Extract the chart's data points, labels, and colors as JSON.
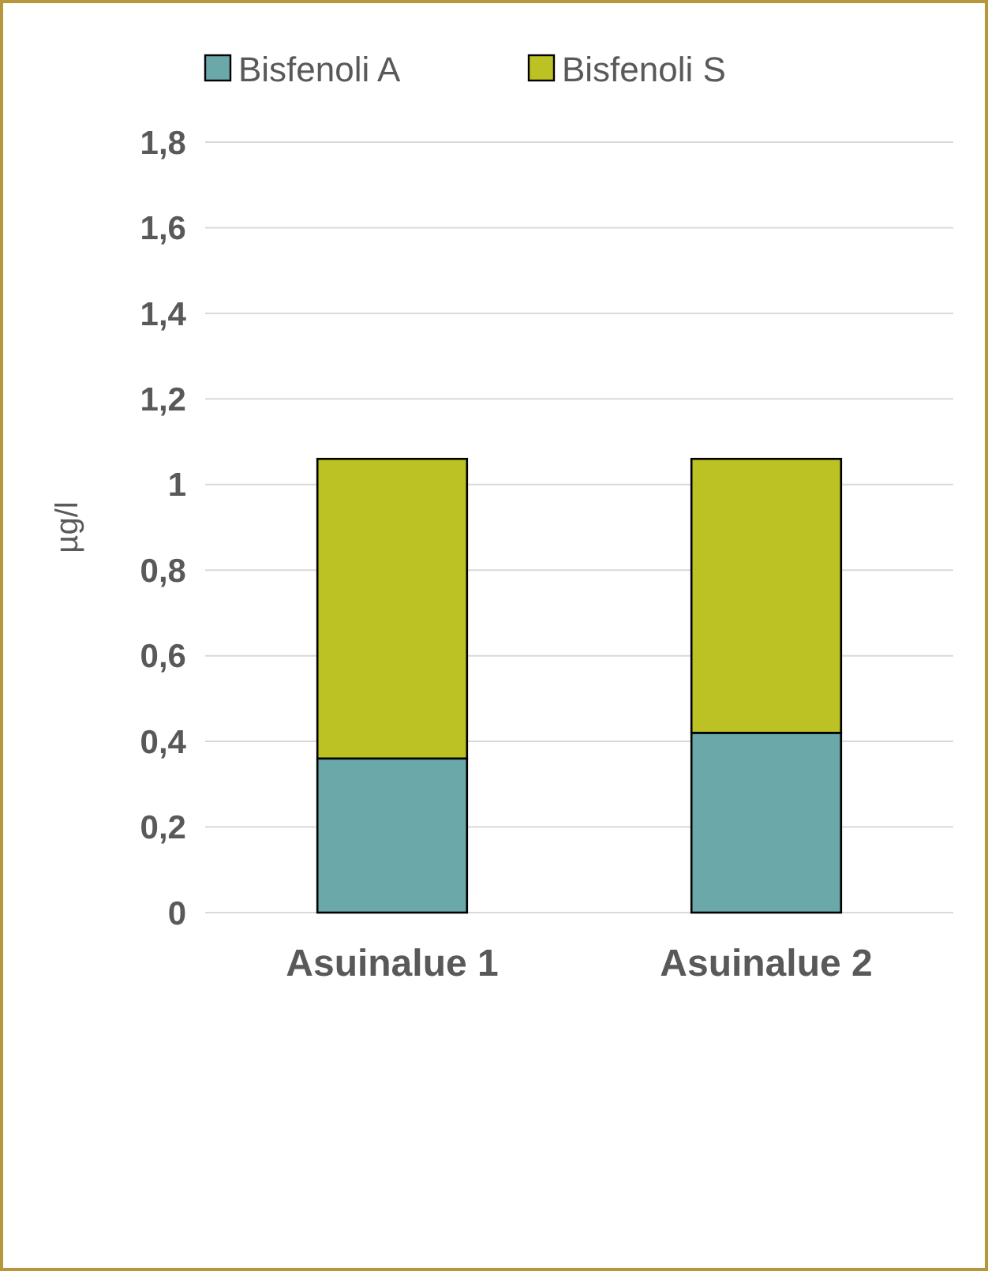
{
  "chart_data": {
    "type": "bar",
    "stacked": true,
    "ylabel": "µg/l",
    "categories": [
      "Asuinalue 1",
      "Asuinalue 2"
    ],
    "series": [
      {
        "name": "Bisfenoli A",
        "color": "#6aa8aa",
        "values": [
          0.36,
          0.42
        ]
      },
      {
        "name": "Bisfenoli S",
        "color": "#bcc224",
        "values": [
          0.7,
          0.64
        ]
      }
    ],
    "ylim": [
      0,
      1.8
    ],
    "yticks": [
      {
        "value": 0,
        "label": "0"
      },
      {
        "value": 0.2,
        "label": "0,2"
      },
      {
        "value": 0.4,
        "label": "0,4"
      },
      {
        "value": 0.6,
        "label": "0,6"
      },
      {
        "value": 0.8,
        "label": "0,8"
      },
      {
        "value": 1,
        "label": "1"
      },
      {
        "value": 1.2,
        "label": "1,2"
      },
      {
        "value": 1.4,
        "label": "1,4"
      },
      {
        "value": 1.6,
        "label": "1,6"
      },
      {
        "value": 1.8,
        "label": "1,8"
      }
    ],
    "grid": "y",
    "legend": "top"
  }
}
